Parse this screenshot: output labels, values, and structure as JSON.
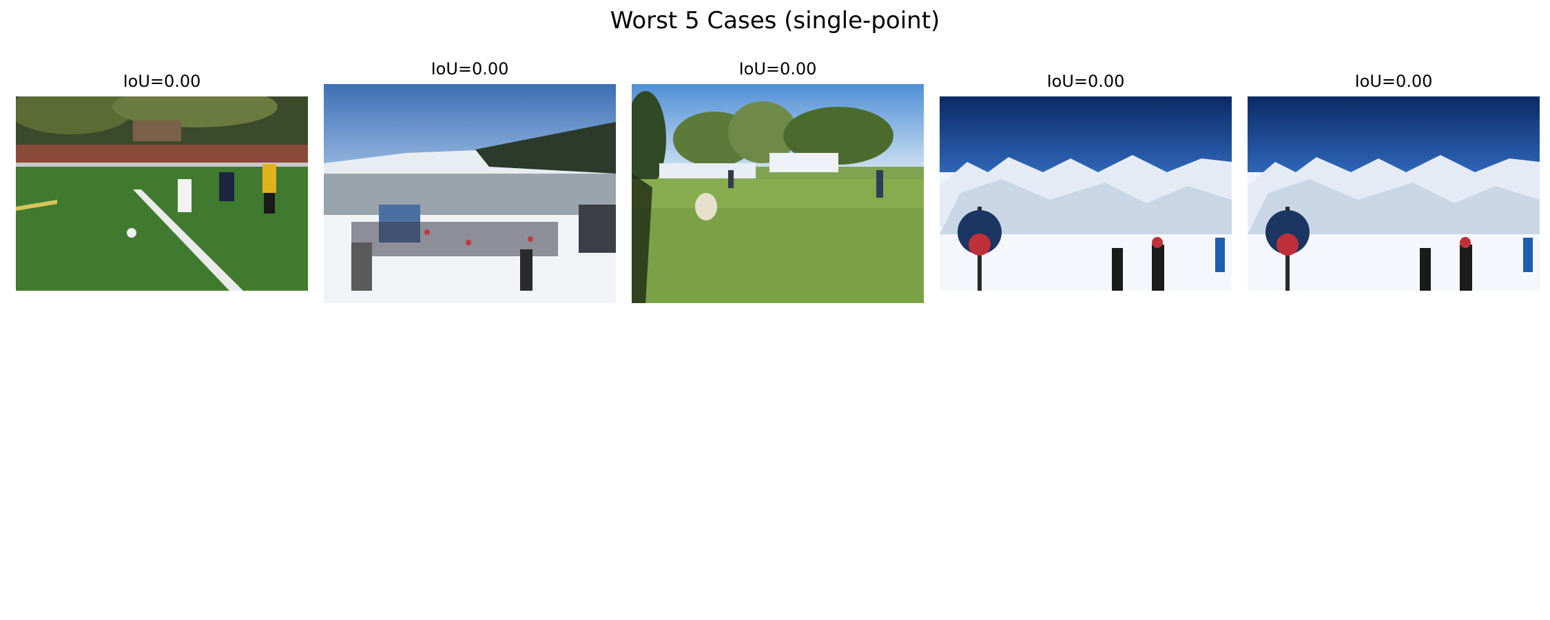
{
  "figure": {
    "title": "Worst 5 Cases (single-point)"
  },
  "panels": [
    {
      "title": "IoU=0.00",
      "scene": "soccer-match"
    },
    {
      "title": "IoU=0.00",
      "scene": "ski-resort-crowd"
    },
    {
      "title": "IoU=0.00",
      "scene": "sheep-on-field"
    },
    {
      "title": "IoU=0.00",
      "scene": "ski-slope-mountains"
    },
    {
      "title": "IoU=0.00",
      "scene": "ski-slope-mountains"
    }
  ]
}
